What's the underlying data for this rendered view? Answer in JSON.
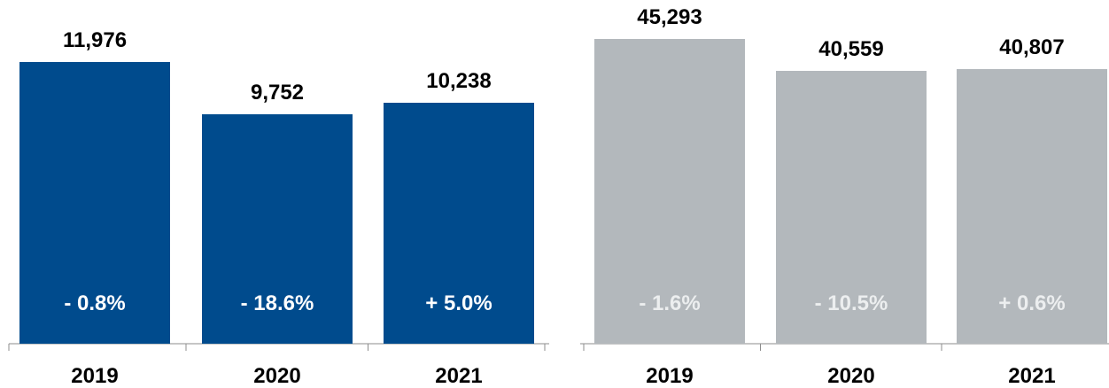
{
  "chart_data": [
    {
      "type": "bar",
      "categories": [
        "2019",
        "2020",
        "2021"
      ],
      "values": [
        11976,
        9752,
        10238
      ],
      "changes": [
        "- 0.8%",
        "- 18.6%",
        "+ 5.0%"
      ],
      "data_labels": [
        "11,976",
        "9,752",
        "10,238"
      ],
      "bar_color": "#004b8d",
      "change_label_color": "#ffffff",
      "ylim": [
        0,
        12944
      ]
    },
    {
      "type": "bar",
      "categories": [
        "2019",
        "2020",
        "2021"
      ],
      "values": [
        45293,
        40559,
        40807
      ],
      "changes": [
        "- 1.6%",
        "- 10.5%",
        "+ 0.6%"
      ],
      "data_labels": [
        "45,293",
        "40,559",
        "40,807"
      ],
      "bar_color": "#b3b8bc",
      "change_label_color": "#eceeef",
      "ylim": [
        0,
        45293
      ]
    }
  ]
}
